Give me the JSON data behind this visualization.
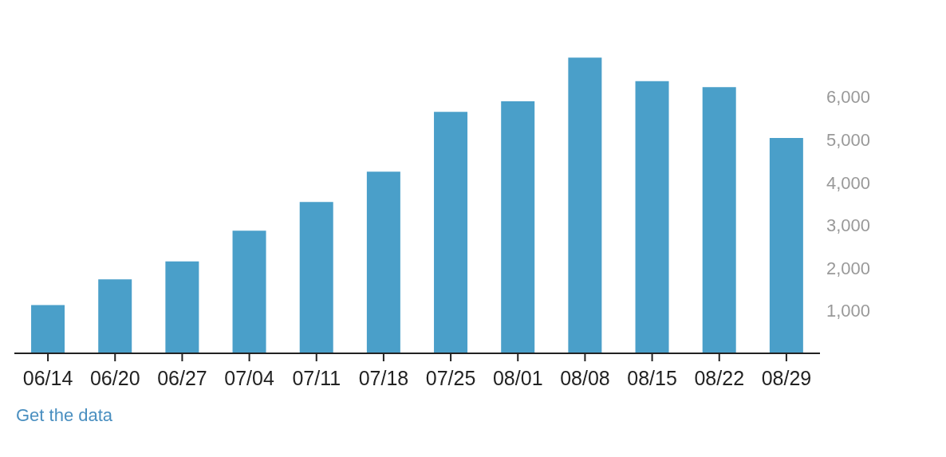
{
  "chart_data": {
    "type": "bar",
    "categories": [
      "06/14",
      "06/20",
      "06/27",
      "07/04",
      "07/11",
      "07/18",
      "07/25",
      "08/01",
      "08/08",
      "08/15",
      "08/22",
      "08/29"
    ],
    "values": [
      1130,
      1730,
      2150,
      2870,
      3540,
      4250,
      5650,
      5900,
      6920,
      6370,
      6230,
      5040
    ],
    "color": "#4a9fc9",
    "ylim": [
      0,
      7000
    ],
    "yticks": [
      {
        "value": 0,
        "label": null
      },
      {
        "value": 1000,
        "label": "1,000"
      },
      {
        "value": 2000,
        "label": "2,000"
      },
      {
        "value": 3000,
        "label": "3,000"
      },
      {
        "value": 4000,
        "label": "4,000"
      },
      {
        "value": 5000,
        "label": "5,000"
      },
      {
        "value": 6000,
        "label": "6,000"
      }
    ],
    "grid": false,
    "annotations": [
      "Get the data"
    ]
  }
}
